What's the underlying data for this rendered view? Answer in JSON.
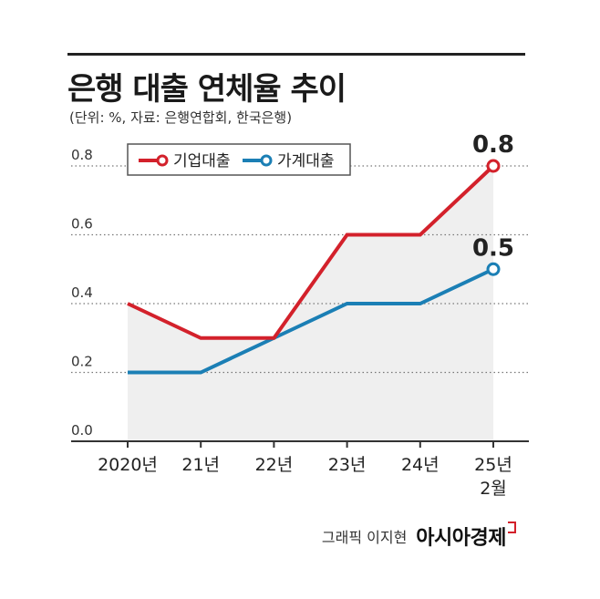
{
  "header": {
    "title": "은행 대출 연체율 추이",
    "subtitle": "(단위: %, 자료: 은행연합회, 한국은행)"
  },
  "footer": {
    "credit": "그래픽 이지현",
    "brand": "아시아경제"
  },
  "colors": {
    "corporate": "#d3212b",
    "household": "#1b7fb5",
    "area": "#efefef"
  },
  "chart_data": {
    "type": "line",
    "categories": [
      "2020년",
      "21년",
      "22년",
      "23년",
      "24년",
      "25년\n2월"
    ],
    "series": [
      {
        "name": "기업대출",
        "values": [
          0.4,
          0.3,
          0.3,
          0.6,
          0.6,
          0.8
        ],
        "end_label": "0.8"
      },
      {
        "name": "가계대출",
        "values": [
          0.2,
          0.2,
          0.3,
          0.4,
          0.4,
          0.5
        ],
        "end_label": "0.5"
      }
    ],
    "yticks": [
      "0.0",
      "0.2",
      "0.4",
      "0.6",
      "0.8"
    ],
    "ylim": [
      0,
      0.8
    ],
    "legend": "top-left"
  }
}
